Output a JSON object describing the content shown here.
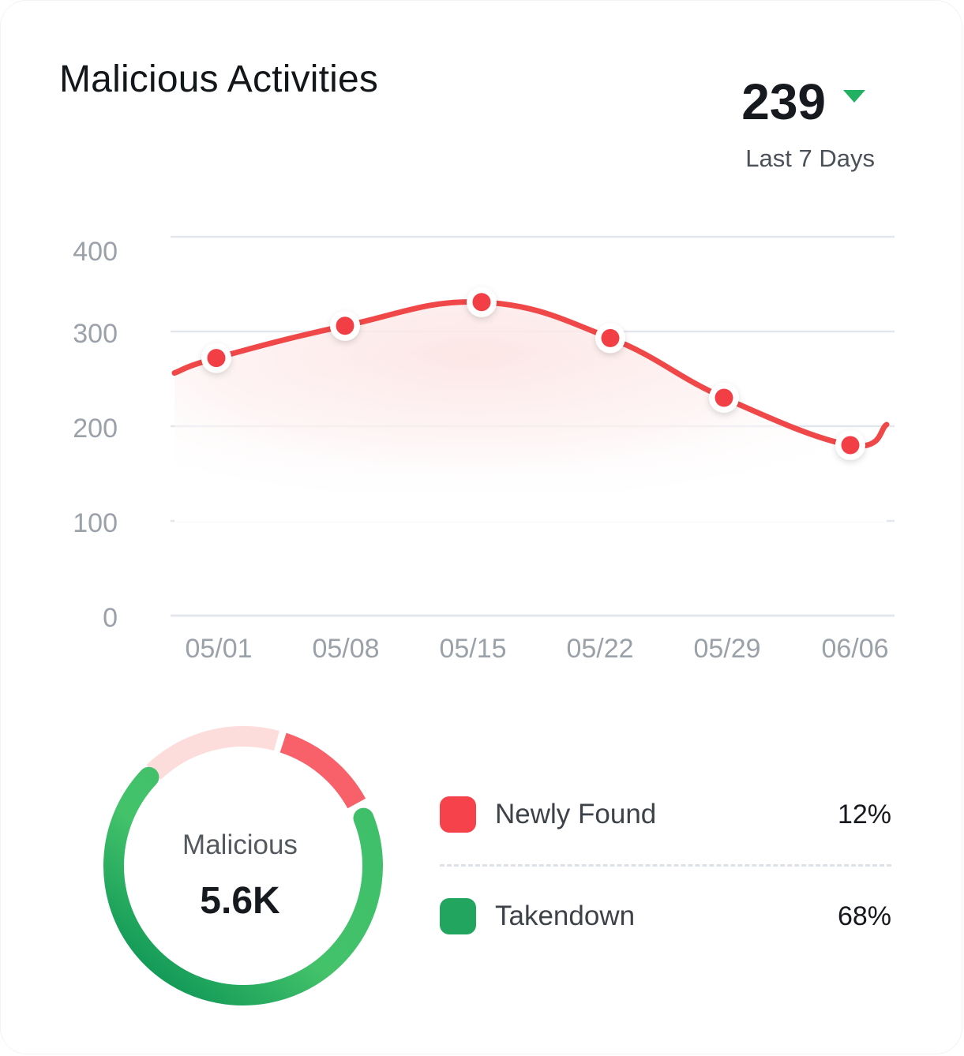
{
  "card": {
    "title": "Malicious Activities",
    "kpi_value": "239",
    "kpi_trend": "down",
    "kpi_caption": "Last 7 Days"
  },
  "colors": {
    "line": "#f04848",
    "point": "#f23f45",
    "grid": "#e3e7ec",
    "newly_found": "#f6434b",
    "takendown": "#21a55f",
    "ring_background": "#fddcdc",
    "trend_down": "#22b063"
  },
  "chart_data": [
    {
      "type": "area",
      "title": "",
      "xlabel": "",
      "ylabel": "",
      "x_ticks": [
        "05/01",
        "05/08",
        "05/15",
        "05/22",
        "05/29",
        "06/06"
      ],
      "y_ticks": [
        "0",
        "100",
        "200",
        "300",
        "400"
      ],
      "ylim": [
        0,
        400
      ],
      "grid": true,
      "series": [
        {
          "values": [
            272,
            306,
            331,
            293,
            230,
            180
          ]
        }
      ]
    },
    {
      "type": "pie",
      "title": "Malicious",
      "total_label": "5.6K",
      "segments": [
        {
          "name": "Newly Found",
          "percent": 12,
          "label": "12%"
        },
        {
          "name": "Takendown",
          "percent": 68,
          "label": "68%"
        }
      ]
    }
  ]
}
